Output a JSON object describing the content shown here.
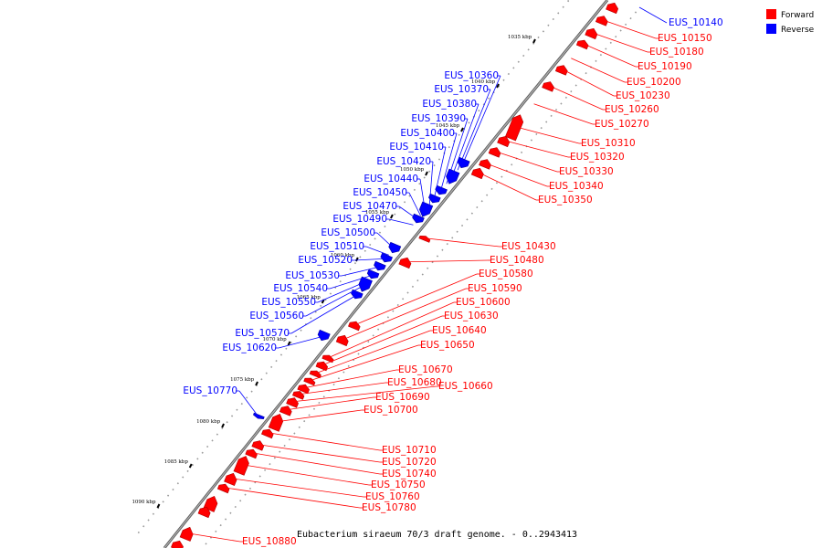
{
  "caption": "Eubacterium siraeum 70/3 draft genome. - 0..2943413",
  "legend": [
    {
      "label": "Forward",
      "color": "#ff0000"
    },
    {
      "label": "Reverse",
      "color": "#0000ff"
    }
  ],
  "colors": {
    "forward": "#ff0000",
    "forward_dark": "#b00000",
    "reverse": "#0000ff",
    "reverse_dark": "#0000a0",
    "backbone": "#808080"
  },
  "ticks": [
    "1035 kbp",
    "1040 kbp",
    "1045 kbp",
    "1050 kbp",
    "1055 kbp",
    "1060 kbp",
    "1065 kbp",
    "1070 kbp",
    "1075 kbp",
    "1080 kbp",
    "1085 kbp",
    "1090 kbp"
  ],
  "forward_labels": [
    "EUS_10150",
    "EUS_10180",
    "EUS_10190",
    "EUS_10200",
    "EUS_10230",
    "EUS_10260",
    "EUS_10270",
    "EUS_10310",
    "EUS_10320",
    "EUS_10330",
    "EUS_10340",
    "EUS_10350",
    "EUS_10430",
    "EUS_10480",
    "EUS_10580",
    "EUS_10590",
    "EUS_10600",
    "EUS_10630",
    "EUS_10640",
    "EUS_10650",
    "EUS_10670",
    "EUS_10680",
    "EUS_10660",
    "EUS_10690",
    "EUS_10700",
    "EUS_10710",
    "EUS_10720",
    "EUS_10740",
    "EUS_10750",
    "EUS_10760",
    "EUS_10780",
    "EUS_10880"
  ],
  "reverse_labels": [
    "EUS_10140",
    "EUS_10360",
    "EUS_10370",
    "EUS_10380",
    "EUS_10390",
    "EUS_10400",
    "EUS_10410",
    "EUS_10420",
    "EUS_10440",
    "EUS_10450",
    "EUS_10470",
    "EUS_10490",
    "EUS_10500",
    "EUS_10510",
    "EUS_10520",
    "EUS_10530",
    "EUS_10540",
    "EUS_10550",
    "EUS_10560",
    "EUS_10570",
    "EUS_10620",
    "EUS_10770"
  ]
}
